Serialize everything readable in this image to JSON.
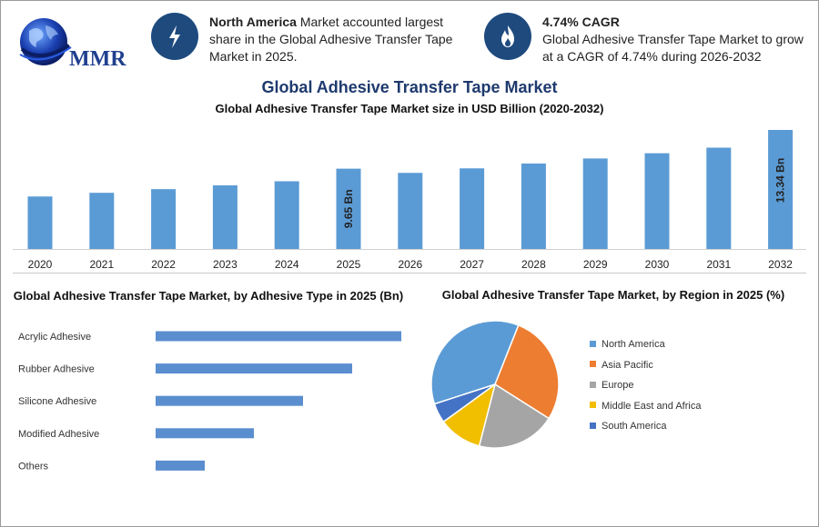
{
  "brand": {
    "logo_text": "MMR"
  },
  "info_cards": [
    {
      "bold": "North America",
      "text": " Market accounted largest share in the Global Adhesive Transfer Tape Market in 2025.",
      "icon": "lightning-icon"
    },
    {
      "bold": "4.74% CAGR",
      "text": "Global Adhesive Transfer Tape Market to grow at a CAGR of 4.74% during 2026-2032",
      "icon": "flame-icon"
    }
  ],
  "main_title": "Global Adhesive Transfer Tape Market",
  "colors": {
    "bar": "#5b9bd5",
    "hbar": "#5a8ecf",
    "title": "#1e3a6e",
    "icon_bg": "#1e4a7e"
  },
  "chart_data": [
    {
      "type": "bar",
      "title": "Global Adhesive Transfer Tape Market size in USD Billion (2020-2032)",
      "categories": [
        "2020",
        "2021",
        "2022",
        "2023",
        "2024",
        "2025",
        "2026",
        "2027",
        "2028",
        "2029",
        "2030",
        "2031",
        "2032"
      ],
      "values": [
        7.0,
        7.35,
        7.7,
        8.06,
        8.45,
        9.65,
        9.25,
        9.68,
        10.14,
        10.62,
        11.12,
        11.65,
        13.34
      ],
      "data_labels": {
        "5": "9.65 Bn",
        "12": "13.34 Bn"
      },
      "ylim": [
        2.0,
        13.34
      ]
    },
    {
      "type": "bar",
      "orientation": "horizontal",
      "title": "Global Adhesive Transfer Tape Market, by Adhesive Type in 2025 (Bn)",
      "categories": [
        "Acrylic Adhesive",
        "Rubber Adhesive",
        "Silicone Adhesive",
        "Modified Adhesive",
        "Others"
      ],
      "values": [
        5.0,
        4.0,
        3.0,
        2.0,
        1.0
      ],
      "xlim": [
        0,
        5.0
      ]
    },
    {
      "type": "pie",
      "title": "Global Adhesive Transfer Tape Market, by Region in 2025 (%)",
      "categories": [
        "North America",
        "Asia Pacific",
        "Europe",
        "Middle East and Africa",
        "South America"
      ],
      "values": [
        36,
        28,
        20,
        11,
        5
      ],
      "colors": [
        "#5b9bd5",
        "#ed7d31",
        "#a5a5a5",
        "#f2be00",
        "#4472c4"
      ],
      "legend": "right"
    }
  ]
}
